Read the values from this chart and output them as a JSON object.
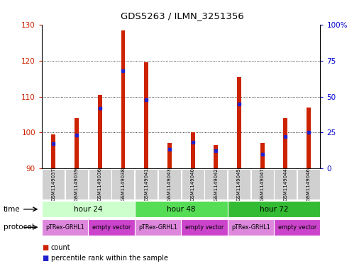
{
  "title": "GDS5263 / ILMN_3251356",
  "samples": [
    "GSM1149037",
    "GSM1149039",
    "GSM1149036",
    "GSM1149038",
    "GSM1149041",
    "GSM1149043",
    "GSM1149040",
    "GSM1149042",
    "GSM1149045",
    "GSM1149047",
    "GSM1149044",
    "GSM1149046"
  ],
  "counts": [
    99.5,
    104.0,
    110.5,
    128.5,
    119.5,
    97.0,
    100.0,
    96.5,
    115.5,
    97.0,
    104.0,
    107.0
  ],
  "percentile_ranks": [
    17,
    23,
    42,
    68,
    48,
    13,
    18,
    12,
    45,
    10,
    22,
    25
  ],
  "ylim_left": [
    90,
    130
  ],
  "ylim_right": [
    0,
    100
  ],
  "yticks_left": [
    90,
    100,
    110,
    120,
    130
  ],
  "yticks_right": [
    0,
    25,
    50,
    75,
    100
  ],
  "ytick_labels_right": [
    "0",
    "25",
    "50",
    "75",
    "100%"
  ],
  "bar_color": "#cc2200",
  "marker_color": "#2222cc",
  "bar_bottom": 90,
  "time_groups": [
    {
      "label": "hour 24",
      "start": 0,
      "end": 4,
      "color": "#ccffcc"
    },
    {
      "label": "hour 48",
      "start": 4,
      "end": 8,
      "color": "#55dd55"
    },
    {
      "label": "hour 72",
      "start": 8,
      "end": 12,
      "color": "#33bb33"
    }
  ],
  "protocol_groups": [
    {
      "label": "pTRex-GRHL1",
      "start": 0,
      "end": 2,
      "color": "#dd88dd"
    },
    {
      "label": "empty vector",
      "start": 2,
      "end": 4,
      "color": "#cc44cc"
    },
    {
      "label": "pTRex-GRHL1",
      "start": 4,
      "end": 6,
      "color": "#dd88dd"
    },
    {
      "label": "empty vector",
      "start": 6,
      "end": 8,
      "color": "#cc44cc"
    },
    {
      "label": "pTRex-GRHL1",
      "start": 8,
      "end": 10,
      "color": "#dd88dd"
    },
    {
      "label": "empty vector",
      "start": 10,
      "end": 12,
      "color": "#cc44cc"
    }
  ],
  "time_label": "time",
  "protocol_label": "protocol",
  "legend_count_label": "count",
  "legend_percentile_label": "percentile rank within the sample",
  "background_color": "#ffffff",
  "label_color_left": "#cc2200",
  "label_color_right": "#0000cc",
  "sample_box_color": "#d0d0d0",
  "bar_width": 0.18
}
